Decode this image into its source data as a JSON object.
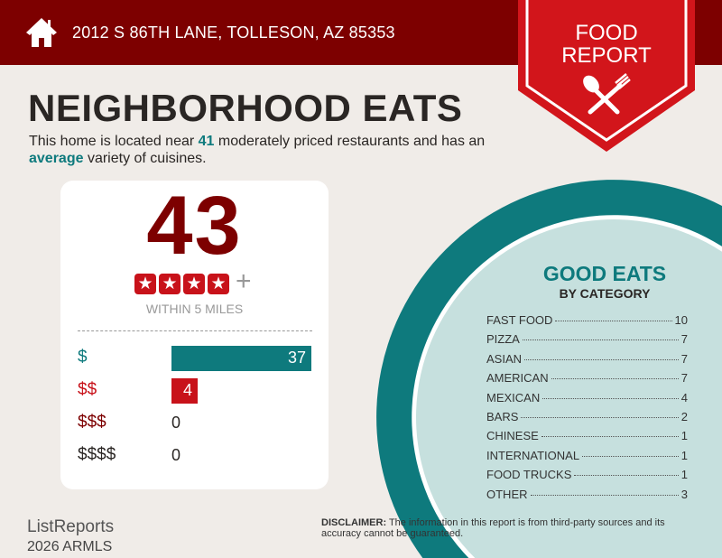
{
  "header": {
    "address": "2012 S 86TH LANE, TOLLESON, AZ 85353",
    "icon": "home-icon"
  },
  "badge": {
    "line1": "FOOD",
    "line2": "REPORT",
    "icon": "spoon-fork-icon"
  },
  "title": "NEIGHBORHOOD EATS",
  "intro": {
    "pre": "This home is located near ",
    "count": "41",
    "mid": " moderately priced restaurants and has an ",
    "variety": "average",
    "post": " variety of cuisines."
  },
  "summary": {
    "total": "43",
    "rating_stars": 4,
    "rating_suffix": "+",
    "radius": "WITHIN 5 MILES"
  },
  "price_levels": [
    {
      "label": "$",
      "count": 37,
      "text": "37",
      "color": "#0e7a7d"
    },
    {
      "label": "$$",
      "count": 4,
      "text": "4",
      "color": "#c8121a"
    },
    {
      "label": "$$$",
      "count": 0,
      "text": "0",
      "color": "#7d0000"
    },
    {
      "label": "$$$$",
      "count": 0,
      "text": "0",
      "color": "#2a2624"
    }
  ],
  "categories": {
    "title": "GOOD EATS",
    "subtitle": "BY CATEGORY",
    "items": [
      {
        "name": "FAST FOOD",
        "count": "10"
      },
      {
        "name": "PIZZA",
        "count": "7"
      },
      {
        "name": "ASIAN",
        "count": "7"
      },
      {
        "name": "AMERICAN",
        "count": "7"
      },
      {
        "name": "MEXICAN",
        "count": "4"
      },
      {
        "name": "BARS",
        "count": "2"
      },
      {
        "name": "CHINESE",
        "count": "1"
      },
      {
        "name": "INTERNATIONAL",
        "count": "1"
      },
      {
        "name": "FOOD TRUCKS",
        "count": "1"
      },
      {
        "name": "OTHER",
        "count": "3"
      }
    ]
  },
  "footer": {
    "logo": "ListReports",
    "watermark": "2026 ARMLS",
    "disclaimer_label": "DISCLAIMER:",
    "disclaimer": " The information in this report is from third-party sources and its accuracy cannot be guaranteed."
  },
  "colors": {
    "header": "#7d0000",
    "accent_red": "#c8121a",
    "teal": "#0e7a7d",
    "light_teal": "#c6e0de",
    "background": "#f0ece8"
  }
}
